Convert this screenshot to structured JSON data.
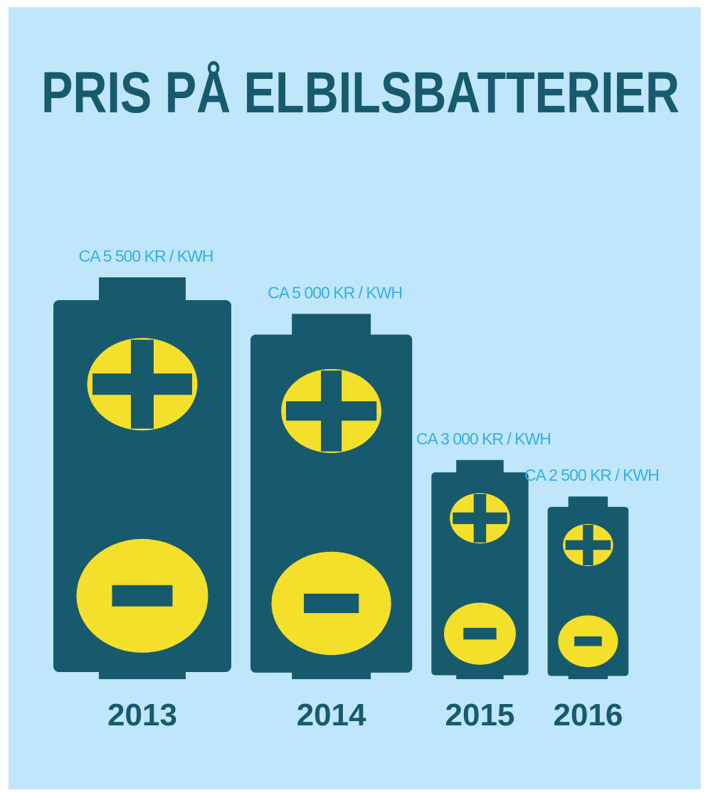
{
  "chart_data": {
    "type": "bar",
    "title": "PRIS PÅ ELBILSBATTERIER",
    "categories": [
      "2013",
      "2014",
      "2015",
      "2016"
    ],
    "values": [
      5500,
      5000,
      3000,
      2500
    ],
    "value_labels": [
      "CA 5 500 KR / KWH",
      "CA 5 000 KR / KWH",
      "CA 3 000 KR / KWH",
      "CA 2 500 KR / KWH"
    ],
    "color": "#175a6d",
    "symbol_color": "#f4df2b"
  }
}
